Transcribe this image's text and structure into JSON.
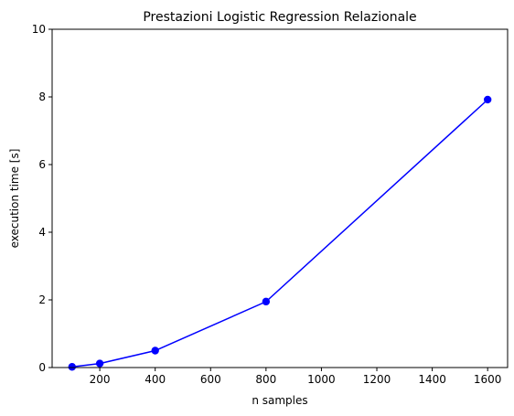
{
  "chart_data": {
    "type": "line",
    "title": "Prestazioni Logistic Regression Relazionale",
    "xlabel": "n samples",
    "ylabel": "execution time [s]",
    "xlim": [
      28,
      1672
    ],
    "ylim": [
      0,
      10
    ],
    "xticks": [
      200,
      400,
      600,
      800,
      1000,
      1200,
      1400,
      1600
    ],
    "yticks": [
      0,
      2,
      4,
      6,
      8,
      10
    ],
    "grid": false,
    "series": [
      {
        "color": "#0000ff",
        "marker": "circle",
        "x": [
          100,
          200,
          400,
          800,
          1600
        ],
        "y": [
          0.02,
          0.12,
          0.5,
          1.95,
          7.92
        ]
      }
    ]
  }
}
